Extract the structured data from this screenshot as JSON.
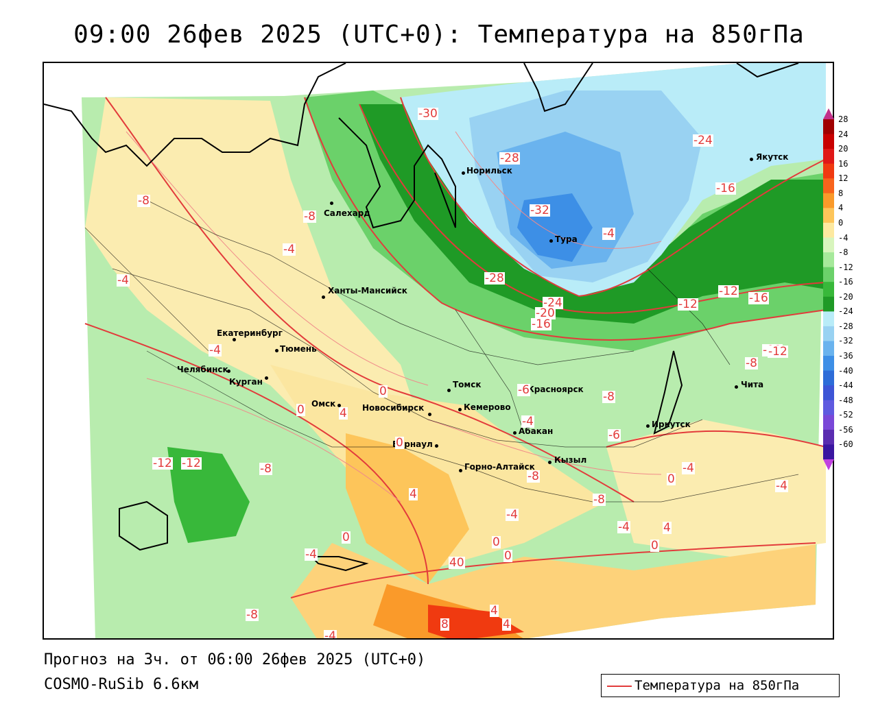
{
  "title": "09:00 26фев 2025 (UTC+0): Температура на 850гПа",
  "forecast_line": "Прогноз на 3ч. от 06:00 26фев 2025 (UTC+0)",
  "model_line": "COSMO-RuSib 6.6км",
  "legend_label": "Температура на 850гПа",
  "colorbar": {
    "ticks": [
      "28",
      "24",
      "20",
      "16",
      "12",
      "8",
      "4",
      "0",
      "-4",
      "-8",
      "-12",
      "-16",
      "-20",
      "-24",
      "-28",
      "-32",
      "-36",
      "-40",
      "-44",
      "-48",
      "-52",
      "-56",
      "-60"
    ],
    "colors": [
      "#a00000",
      "#c80000",
      "#e01818",
      "#f03a10",
      "#f8641c",
      "#fa9a2a",
      "#fdc55a",
      "#fde9a0",
      "#d8f5bd",
      "#a6e99b",
      "#6bd16a",
      "#38b83a",
      "#1f9a26",
      "#b9ecf8",
      "#99d2f2",
      "#6ab3ee",
      "#3d8fe6",
      "#2d6cd8",
      "#3d55d6",
      "#5f5ae0",
      "#7a48d8",
      "#5a2cb0",
      "#3a16a0"
    ]
  },
  "cities": [
    {
      "name": "Салехард"
    },
    {
      "name": "Норильск"
    },
    {
      "name": "Якутск"
    },
    {
      "name": "Тура"
    },
    {
      "name": "Ханты-Мансийск"
    },
    {
      "name": "Екатеринбург"
    },
    {
      "name": "Тюмень"
    },
    {
      "name": "Челябинск"
    },
    {
      "name": "Курган"
    },
    {
      "name": "Омск"
    },
    {
      "name": "Новосибирск"
    },
    {
      "name": "Томск"
    },
    {
      "name": "Кемерово"
    },
    {
      "name": "Красноярск"
    },
    {
      "name": "Абакан"
    },
    {
      "name": "Барнаул"
    },
    {
      "name": "Горно-Алтайск"
    },
    {
      "name": "Кызыл"
    },
    {
      "name": "Иркутск"
    },
    {
      "name": "Чита"
    }
  ],
  "contour_labels": [
    "-30",
    "-28",
    "-32",
    "-28",
    "-24",
    "-20",
    "-16",
    "-24",
    "-16",
    "-12",
    "-12",
    "-16",
    "-12",
    "-8",
    "-8",
    "-4",
    "-8",
    "-4",
    "-4",
    "-4",
    "-12",
    "-12",
    "-8",
    "0",
    "4",
    "0",
    "-8",
    "4",
    "0",
    "-4",
    "0",
    "40",
    "0",
    "0",
    "8",
    "4",
    "4",
    "-4",
    "-4",
    "-8",
    "0",
    "-4",
    "-4",
    "0",
    "4",
    "-8",
    "-6",
    "-6",
    "-8",
    "-12",
    "-4",
    "-4"
  ]
}
